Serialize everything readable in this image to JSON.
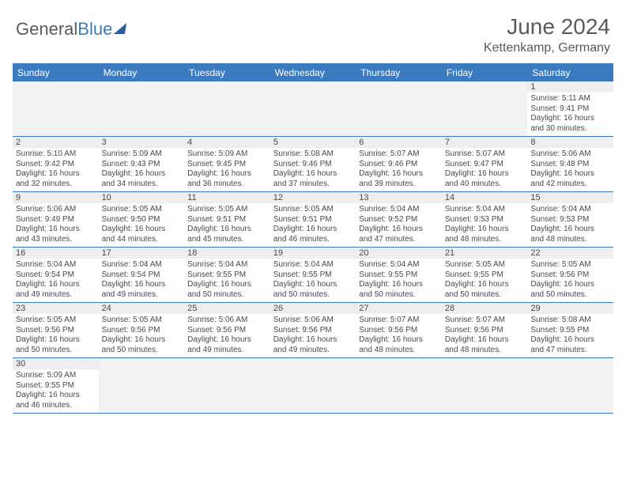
{
  "brand": {
    "part1": "General",
    "part2": "Blue"
  },
  "title": "June 2024",
  "location": "Kettenkamp, Germany",
  "colors": {
    "header_bg": "#3a7bbf",
    "header_text": "#ffffff",
    "text": "#4a4a4a",
    "row_divider": "#3a7bbf",
    "daynum_bg": "#eeeeee"
  },
  "day_labels": [
    "Sunday",
    "Monday",
    "Tuesday",
    "Wednesday",
    "Thursday",
    "Friday",
    "Saturday"
  ],
  "weeks": [
    [
      null,
      null,
      null,
      null,
      null,
      null,
      {
        "n": "1",
        "sr": "5:11 AM",
        "ss": "9:41 PM",
        "dl": "16 hours and 30 minutes."
      }
    ],
    [
      {
        "n": "2",
        "sr": "5:10 AM",
        "ss": "9:42 PM",
        "dl": "16 hours and 32 minutes."
      },
      {
        "n": "3",
        "sr": "5:09 AM",
        "ss": "9:43 PM",
        "dl": "16 hours and 34 minutes."
      },
      {
        "n": "4",
        "sr": "5:09 AM",
        "ss": "9:45 PM",
        "dl": "16 hours and 36 minutes."
      },
      {
        "n": "5",
        "sr": "5:08 AM",
        "ss": "9:46 PM",
        "dl": "16 hours and 37 minutes."
      },
      {
        "n": "6",
        "sr": "5:07 AM",
        "ss": "9:46 PM",
        "dl": "16 hours and 39 minutes."
      },
      {
        "n": "7",
        "sr": "5:07 AM",
        "ss": "9:47 PM",
        "dl": "16 hours and 40 minutes."
      },
      {
        "n": "8",
        "sr": "5:06 AM",
        "ss": "9:48 PM",
        "dl": "16 hours and 42 minutes."
      }
    ],
    [
      {
        "n": "9",
        "sr": "5:06 AM",
        "ss": "9:49 PM",
        "dl": "16 hours and 43 minutes."
      },
      {
        "n": "10",
        "sr": "5:05 AM",
        "ss": "9:50 PM",
        "dl": "16 hours and 44 minutes."
      },
      {
        "n": "11",
        "sr": "5:05 AM",
        "ss": "9:51 PM",
        "dl": "16 hours and 45 minutes."
      },
      {
        "n": "12",
        "sr": "5:05 AM",
        "ss": "9:51 PM",
        "dl": "16 hours and 46 minutes."
      },
      {
        "n": "13",
        "sr": "5:04 AM",
        "ss": "9:52 PM",
        "dl": "16 hours and 47 minutes."
      },
      {
        "n": "14",
        "sr": "5:04 AM",
        "ss": "9:53 PM",
        "dl": "16 hours and 48 minutes."
      },
      {
        "n": "15",
        "sr": "5:04 AM",
        "ss": "9:53 PM",
        "dl": "16 hours and 48 minutes."
      }
    ],
    [
      {
        "n": "16",
        "sr": "5:04 AM",
        "ss": "9:54 PM",
        "dl": "16 hours and 49 minutes."
      },
      {
        "n": "17",
        "sr": "5:04 AM",
        "ss": "9:54 PM",
        "dl": "16 hours and 49 minutes."
      },
      {
        "n": "18",
        "sr": "5:04 AM",
        "ss": "9:55 PM",
        "dl": "16 hours and 50 minutes."
      },
      {
        "n": "19",
        "sr": "5:04 AM",
        "ss": "9:55 PM",
        "dl": "16 hours and 50 minutes."
      },
      {
        "n": "20",
        "sr": "5:04 AM",
        "ss": "9:55 PM",
        "dl": "16 hours and 50 minutes."
      },
      {
        "n": "21",
        "sr": "5:05 AM",
        "ss": "9:55 PM",
        "dl": "16 hours and 50 minutes."
      },
      {
        "n": "22",
        "sr": "5:05 AM",
        "ss": "9:56 PM",
        "dl": "16 hours and 50 minutes."
      }
    ],
    [
      {
        "n": "23",
        "sr": "5:05 AM",
        "ss": "9:56 PM",
        "dl": "16 hours and 50 minutes."
      },
      {
        "n": "24",
        "sr": "5:05 AM",
        "ss": "9:56 PM",
        "dl": "16 hours and 50 minutes."
      },
      {
        "n": "25",
        "sr": "5:06 AM",
        "ss": "9:56 PM",
        "dl": "16 hours and 49 minutes."
      },
      {
        "n": "26",
        "sr": "5:06 AM",
        "ss": "9:56 PM",
        "dl": "16 hours and 49 minutes."
      },
      {
        "n": "27",
        "sr": "5:07 AM",
        "ss": "9:56 PM",
        "dl": "16 hours and 48 minutes."
      },
      {
        "n": "28",
        "sr": "5:07 AM",
        "ss": "9:56 PM",
        "dl": "16 hours and 48 minutes."
      },
      {
        "n": "29",
        "sr": "5:08 AM",
        "ss": "9:55 PM",
        "dl": "16 hours and 47 minutes."
      }
    ],
    [
      {
        "n": "30",
        "sr": "5:09 AM",
        "ss": "9:55 PM",
        "dl": "16 hours and 46 minutes."
      },
      null,
      null,
      null,
      null,
      null,
      null
    ]
  ],
  "labels": {
    "sunrise": "Sunrise:",
    "sunset": "Sunset:",
    "daylight": "Daylight:"
  }
}
